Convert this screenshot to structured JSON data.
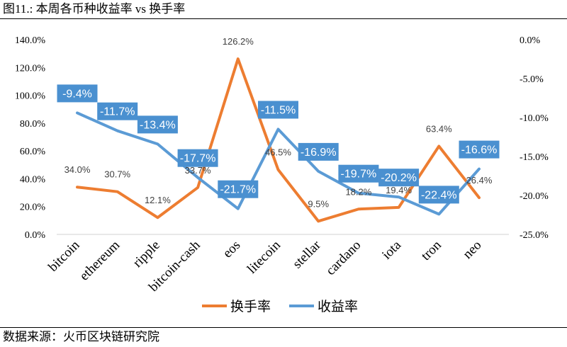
{
  "header": {
    "title": "图11.: 本周各币种收益率 vs 换手率"
  },
  "footer": {
    "source": "数据来源：火币区块链研究院"
  },
  "colors": {
    "turnover": "#ED7D31",
    "return": "#5B9BD5",
    "return_label_bg": "#4A90D0"
  },
  "chart_data": {
    "type": "line",
    "categories": [
      "bitcoin",
      "ethereum",
      "ripple",
      "bitcoin-cash",
      "eos",
      "litecoin",
      "stellar",
      "cardano",
      "iota",
      "tron",
      "neo"
    ],
    "series": [
      {
        "name": "换手率",
        "axis": "left",
        "values": [
          34.0,
          30.7,
          12.1,
          33.7,
          126.2,
          46.5,
          9.5,
          18.2,
          19.4,
          63.4,
          26.4
        ],
        "labels": [
          "34.0%",
          "30.7%",
          "12.1%",
          "33.7%",
          "126.2%",
          "46.5%",
          "9.5%",
          "18.2%",
          "19.4%",
          "63.4%",
          "26.4%"
        ]
      },
      {
        "name": "收益率",
        "axis": "right",
        "values": [
          -9.4,
          -11.7,
          -13.4,
          -17.7,
          -21.7,
          -11.5,
          -16.9,
          -19.7,
          -20.2,
          -22.4,
          -16.6
        ],
        "labels": [
          "-9.4%",
          "-11.7%",
          "-13.4%",
          "-17.7%",
          "-21.7%",
          "-11.5%",
          "-16.9%",
          "-19.7%",
          "-20.2%",
          "-22.4%",
          "-16.6%"
        ]
      }
    ],
    "left_axis": {
      "min": 0,
      "max": 140,
      "step": 20,
      "ticks": [
        "0.0%",
        "20.0%",
        "40.0%",
        "60.0%",
        "80.0%",
        "100.0%",
        "120.0%",
        "140.0%"
      ]
    },
    "right_axis": {
      "min": -25,
      "max": 0,
      "step": 5,
      "ticks": [
        "-25.0%",
        "-20.0%",
        "-15.0%",
        "-10.0%",
        "-5.0%",
        "0.0%"
      ]
    },
    "grid": false,
    "legend_position": "bottom"
  }
}
